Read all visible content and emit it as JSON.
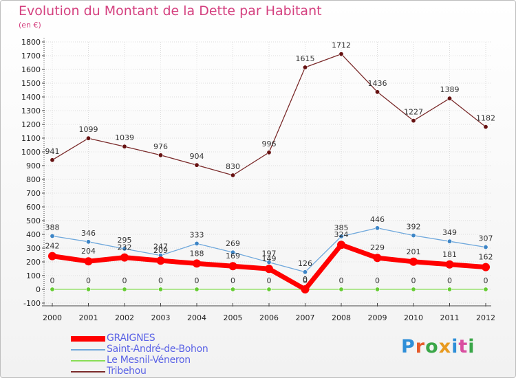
{
  "title": "Evolution du Montant de la Dette par Habitant",
  "subtitle": "(en €)",
  "logo": "Proxiti",
  "logo_colors": [
    "#2f8fd8",
    "#e55b2a",
    "#3aa648",
    "#e89a1f",
    "#2f8fd8",
    "#d94fa0",
    "#3aa648"
  ],
  "colors": {
    "title": "#d4407f",
    "axis": "#444444",
    "grid": "#dddddd",
    "legend_text": "#5b63e6"
  },
  "chart_data": {
    "type": "line",
    "title": "Evolution du Montant de la Dette par Habitant",
    "ylabel": "(en €)",
    "x": [
      "2000",
      "2001",
      "2002",
      "2003",
      "2004",
      "2005",
      "2006",
      "2007",
      "2008",
      "2009",
      "2010",
      "2011",
      "2012"
    ],
    "ylim": [
      -100,
      1800
    ],
    "yticks": [
      -100,
      0,
      100,
      200,
      300,
      400,
      500,
      600,
      700,
      800,
      900,
      1000,
      1100,
      1200,
      1300,
      1400,
      1500,
      1600,
      1700,
      1800
    ],
    "grid": true,
    "legend": "bottom-left",
    "series": [
      {
        "name": "GRAIGNES",
        "color": "#ff0000",
        "marker": "#ff0000",
        "width": 7,
        "values": [
          242,
          204,
          232,
          209,
          188,
          169,
          149,
          0,
          324,
          229,
          201,
          181,
          162
        ]
      },
      {
        "name": "Saint-André-de-Bohon",
        "color": "#6fa8dc",
        "marker": "#3d85c6",
        "width": 1.3,
        "values": [
          388,
          346,
          295,
          247,
          333,
          269,
          197,
          126,
          385,
          446,
          392,
          349,
          307
        ]
      },
      {
        "name": "Le Mesnil-Véneron",
        "color": "#88dd55",
        "marker": "#66cc33",
        "width": 1.3,
        "values": [
          0,
          0,
          0,
          0,
          0,
          0,
          0,
          0,
          0,
          0,
          0,
          0,
          0
        ]
      },
      {
        "name": "Tribehou",
        "color": "#7a2a2a",
        "marker": "#661111",
        "width": 1.3,
        "values": [
          941,
          1099,
          1039,
          976,
          904,
          830,
          996,
          1615,
          1712,
          1436,
          1227,
          1389,
          1182
        ]
      }
    ]
  }
}
